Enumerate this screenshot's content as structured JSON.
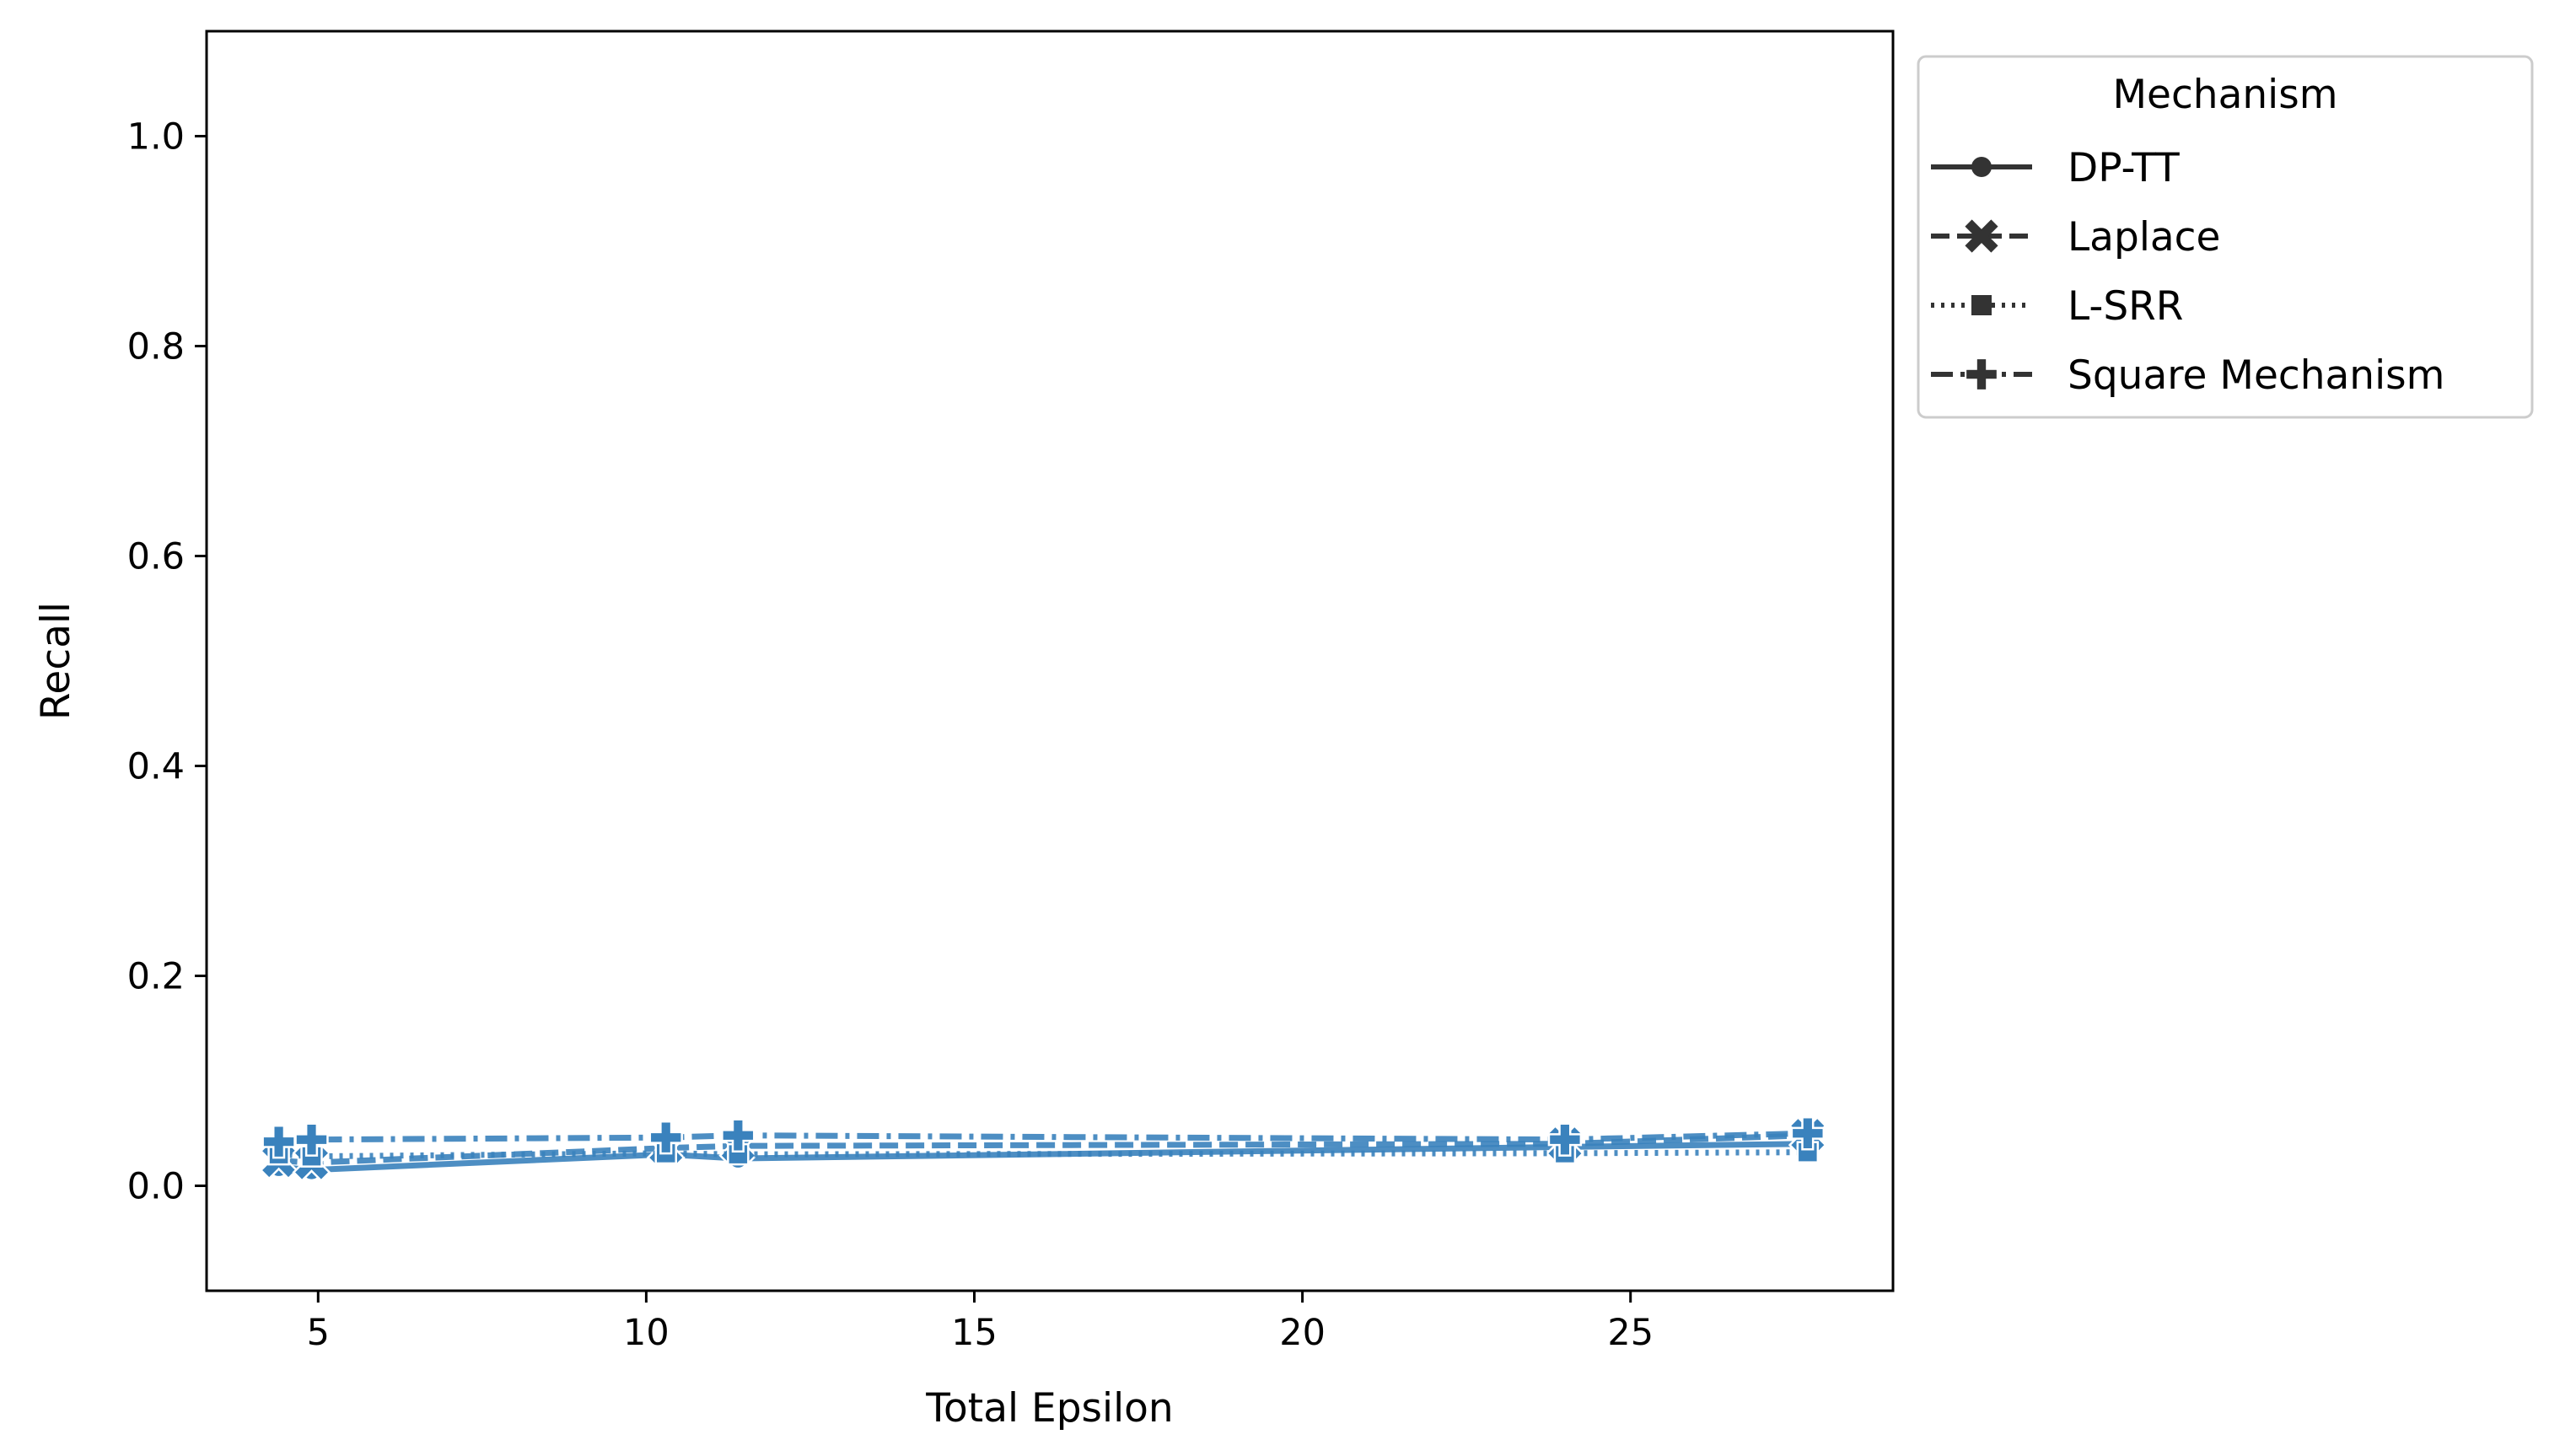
{
  "chart_data": {
    "type": "line",
    "title": "",
    "xlabel": "Total Epsilon",
    "ylabel": "Recall",
    "xlim": [
      3.3,
      29.0
    ],
    "ylim": [
      -0.1,
      1.1
    ],
    "xticks": [
      5,
      10,
      15,
      20,
      25
    ],
    "xtick_labels": [
      "5",
      "10",
      "15",
      "20",
      "25"
    ],
    "yticks": [
      0.0,
      0.2,
      0.4,
      0.6,
      0.8,
      1.0
    ],
    "ytick_labels": [
      "0.0",
      "0.2",
      "0.4",
      "0.6",
      "0.8",
      "1.0"
    ],
    "grid": false,
    "legend": {
      "title": "Mechanism",
      "placement": "outside upper right",
      "entries": [
        "DP-TT",
        "Laplace",
        "L-SRR",
        "Square Mechanism"
      ]
    },
    "line_color": "#3a82bd",
    "legend_color": "#333333",
    "series": [
      {
        "name": "DP-TT",
        "marker": "circle",
        "dash": "solid",
        "x": [
          4.4,
          4.9,
          10.3,
          11.4,
          24.0,
          27.7
        ],
        "y": [
          0.018,
          0.015,
          0.03,
          0.026,
          0.037,
          0.04
        ]
      },
      {
        "name": "Laplace",
        "marker": "x",
        "dash": "dashed",
        "x": [
          4.4,
          4.9,
          10.3,
          11.4,
          24.0,
          27.7
        ],
        "y": [
          0.024,
          0.022,
          0.036,
          0.038,
          0.04,
          0.048
        ]
      },
      {
        "name": "L-SRR",
        "marker": "square",
        "dash": "dotted",
        "x": [
          4.4,
          4.9,
          10.3,
          11.4,
          24.0,
          27.7
        ],
        "y": [
          0.03,
          0.028,
          0.031,
          0.03,
          0.031,
          0.032
        ]
      },
      {
        "name": "Square Mechanism",
        "marker": "plus",
        "dash": "dashdot",
        "x": [
          4.4,
          4.9,
          10.3,
          11.4,
          24.0,
          27.7
        ],
        "y": [
          0.042,
          0.044,
          0.046,
          0.048,
          0.044,
          0.05
        ]
      }
    ]
  }
}
